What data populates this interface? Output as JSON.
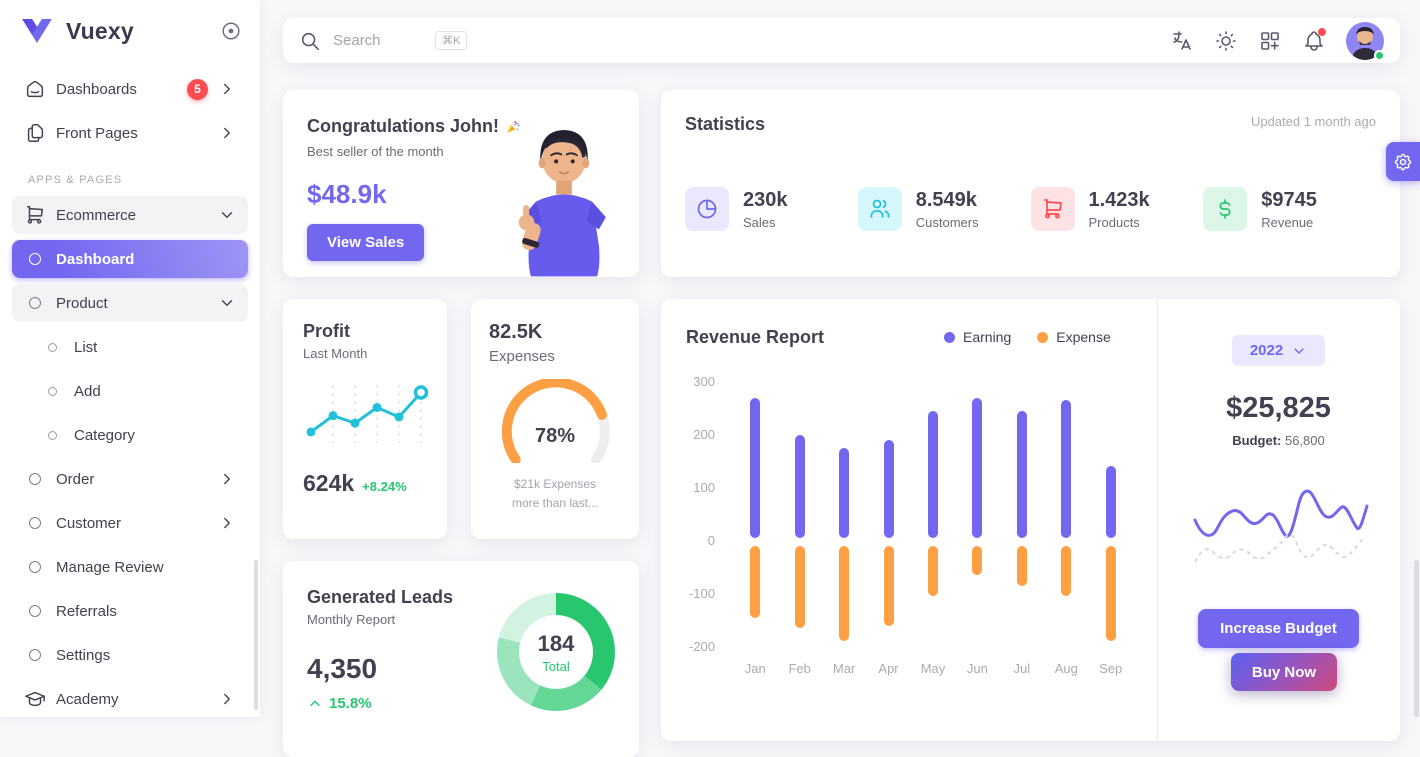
{
  "colors": {
    "primary": "#7367f0",
    "success": "#28c76f",
    "danger": "#ff4c51",
    "warning": "#ff9f43",
    "info": "#21c1d7",
    "muted": "#acaab1",
    "body_bg": "#f8f7fa"
  },
  "sidebar": {
    "brand": "Vuexy",
    "section_label": "APPS & PAGES",
    "items": [
      {
        "label": "Dashboards",
        "badge": "5"
      },
      {
        "label": "Front Pages"
      },
      {
        "label": "Ecommerce"
      },
      {
        "label": "Dashboard"
      },
      {
        "label": "Product"
      },
      {
        "label": "List"
      },
      {
        "label": "Add"
      },
      {
        "label": "Category"
      },
      {
        "label": "Order"
      },
      {
        "label": "Customer"
      },
      {
        "label": "Manage Review"
      },
      {
        "label": "Referrals"
      },
      {
        "label": "Settings"
      },
      {
        "label": "Academy"
      }
    ]
  },
  "topbar": {
    "search_placeholder": "Search",
    "shortcut_key": "⌘K"
  },
  "congrats": {
    "title": "Congratulations John!",
    "subtitle": "Best seller of the month",
    "amount": "$48.9k",
    "cta": "View Sales"
  },
  "statistics": {
    "title": "Statistics",
    "updated": "Updated 1 month ago",
    "items": [
      {
        "value": "230k",
        "label": "Sales",
        "icon": "pie-chart-icon",
        "color": "#7367f0",
        "bg": "#eae8fd"
      },
      {
        "value": "8.549k",
        "label": "Customers",
        "icon": "users-icon",
        "color": "#21c1d7",
        "bg": "#d6f7fb"
      },
      {
        "value": "1.423k",
        "label": "Products",
        "icon": "cart-icon",
        "color": "#ff4c51",
        "bg": "#ffe2e3"
      },
      {
        "value": "$9745",
        "label": "Revenue",
        "icon": "dollar-icon",
        "color": "#28c76f",
        "bg": "#dcf6e8"
      }
    ]
  },
  "profit": {
    "title": "Profit",
    "subtitle": "Last Month",
    "value": "624k",
    "delta": "+8.24%",
    "chart_data": {
      "type": "line",
      "points": [
        28,
        52,
        41,
        64,
        50,
        86
      ]
    }
  },
  "expenses": {
    "value": "82.5K",
    "label": "Expenses",
    "percent": 78,
    "percent_label": "78%",
    "note_line1": "$21k Expenses",
    "note_line2": "more than last..."
  },
  "leads": {
    "title": "Generated Leads",
    "subtitle": "Monthly Report",
    "value": "4,350",
    "delta": "15.8%",
    "donut": {
      "center_value": "184",
      "center_label": "Total",
      "segments": [
        {
          "value": 36,
          "color": "#28c76f"
        },
        {
          "value": 21,
          "color": "#63d795"
        },
        {
          "value": 22,
          "color": "#9ce4bd"
        },
        {
          "value": 21,
          "color": "#d2f3e1"
        }
      ]
    }
  },
  "revenue_report": {
    "title": "Revenue Report",
    "legend": [
      {
        "label": "Earning",
        "color": "#7367f0"
      },
      {
        "label": "Expense",
        "color": "#ff9f43"
      }
    ],
    "chart_data": {
      "type": "bar",
      "categories": [
        "Jan",
        "Feb",
        "Mar",
        "Apr",
        "May",
        "Jun",
        "Jul",
        "Aug",
        "Sep"
      ],
      "series": [
        {
          "name": "Earning",
          "color": "#7367f0",
          "values": [
            265,
            195,
            170,
            185,
            240,
            265,
            240,
            260,
            135
          ]
        },
        {
          "name": "Expense",
          "color": "#ff9f43",
          "values": [
            -135,
            -155,
            -180,
            -150,
            -95,
            -55,
            -75,
            -95,
            -180
          ]
        }
      ],
      "ylim": [
        -200,
        300
      ],
      "yticks": [
        300,
        200,
        100,
        0,
        -100,
        -200
      ]
    },
    "year": "2022",
    "total": "$25,825",
    "budget_label": "Budget:",
    "budget_value": "56,800",
    "cta": "Increase Budget"
  },
  "buy_now_label": "Buy Now"
}
